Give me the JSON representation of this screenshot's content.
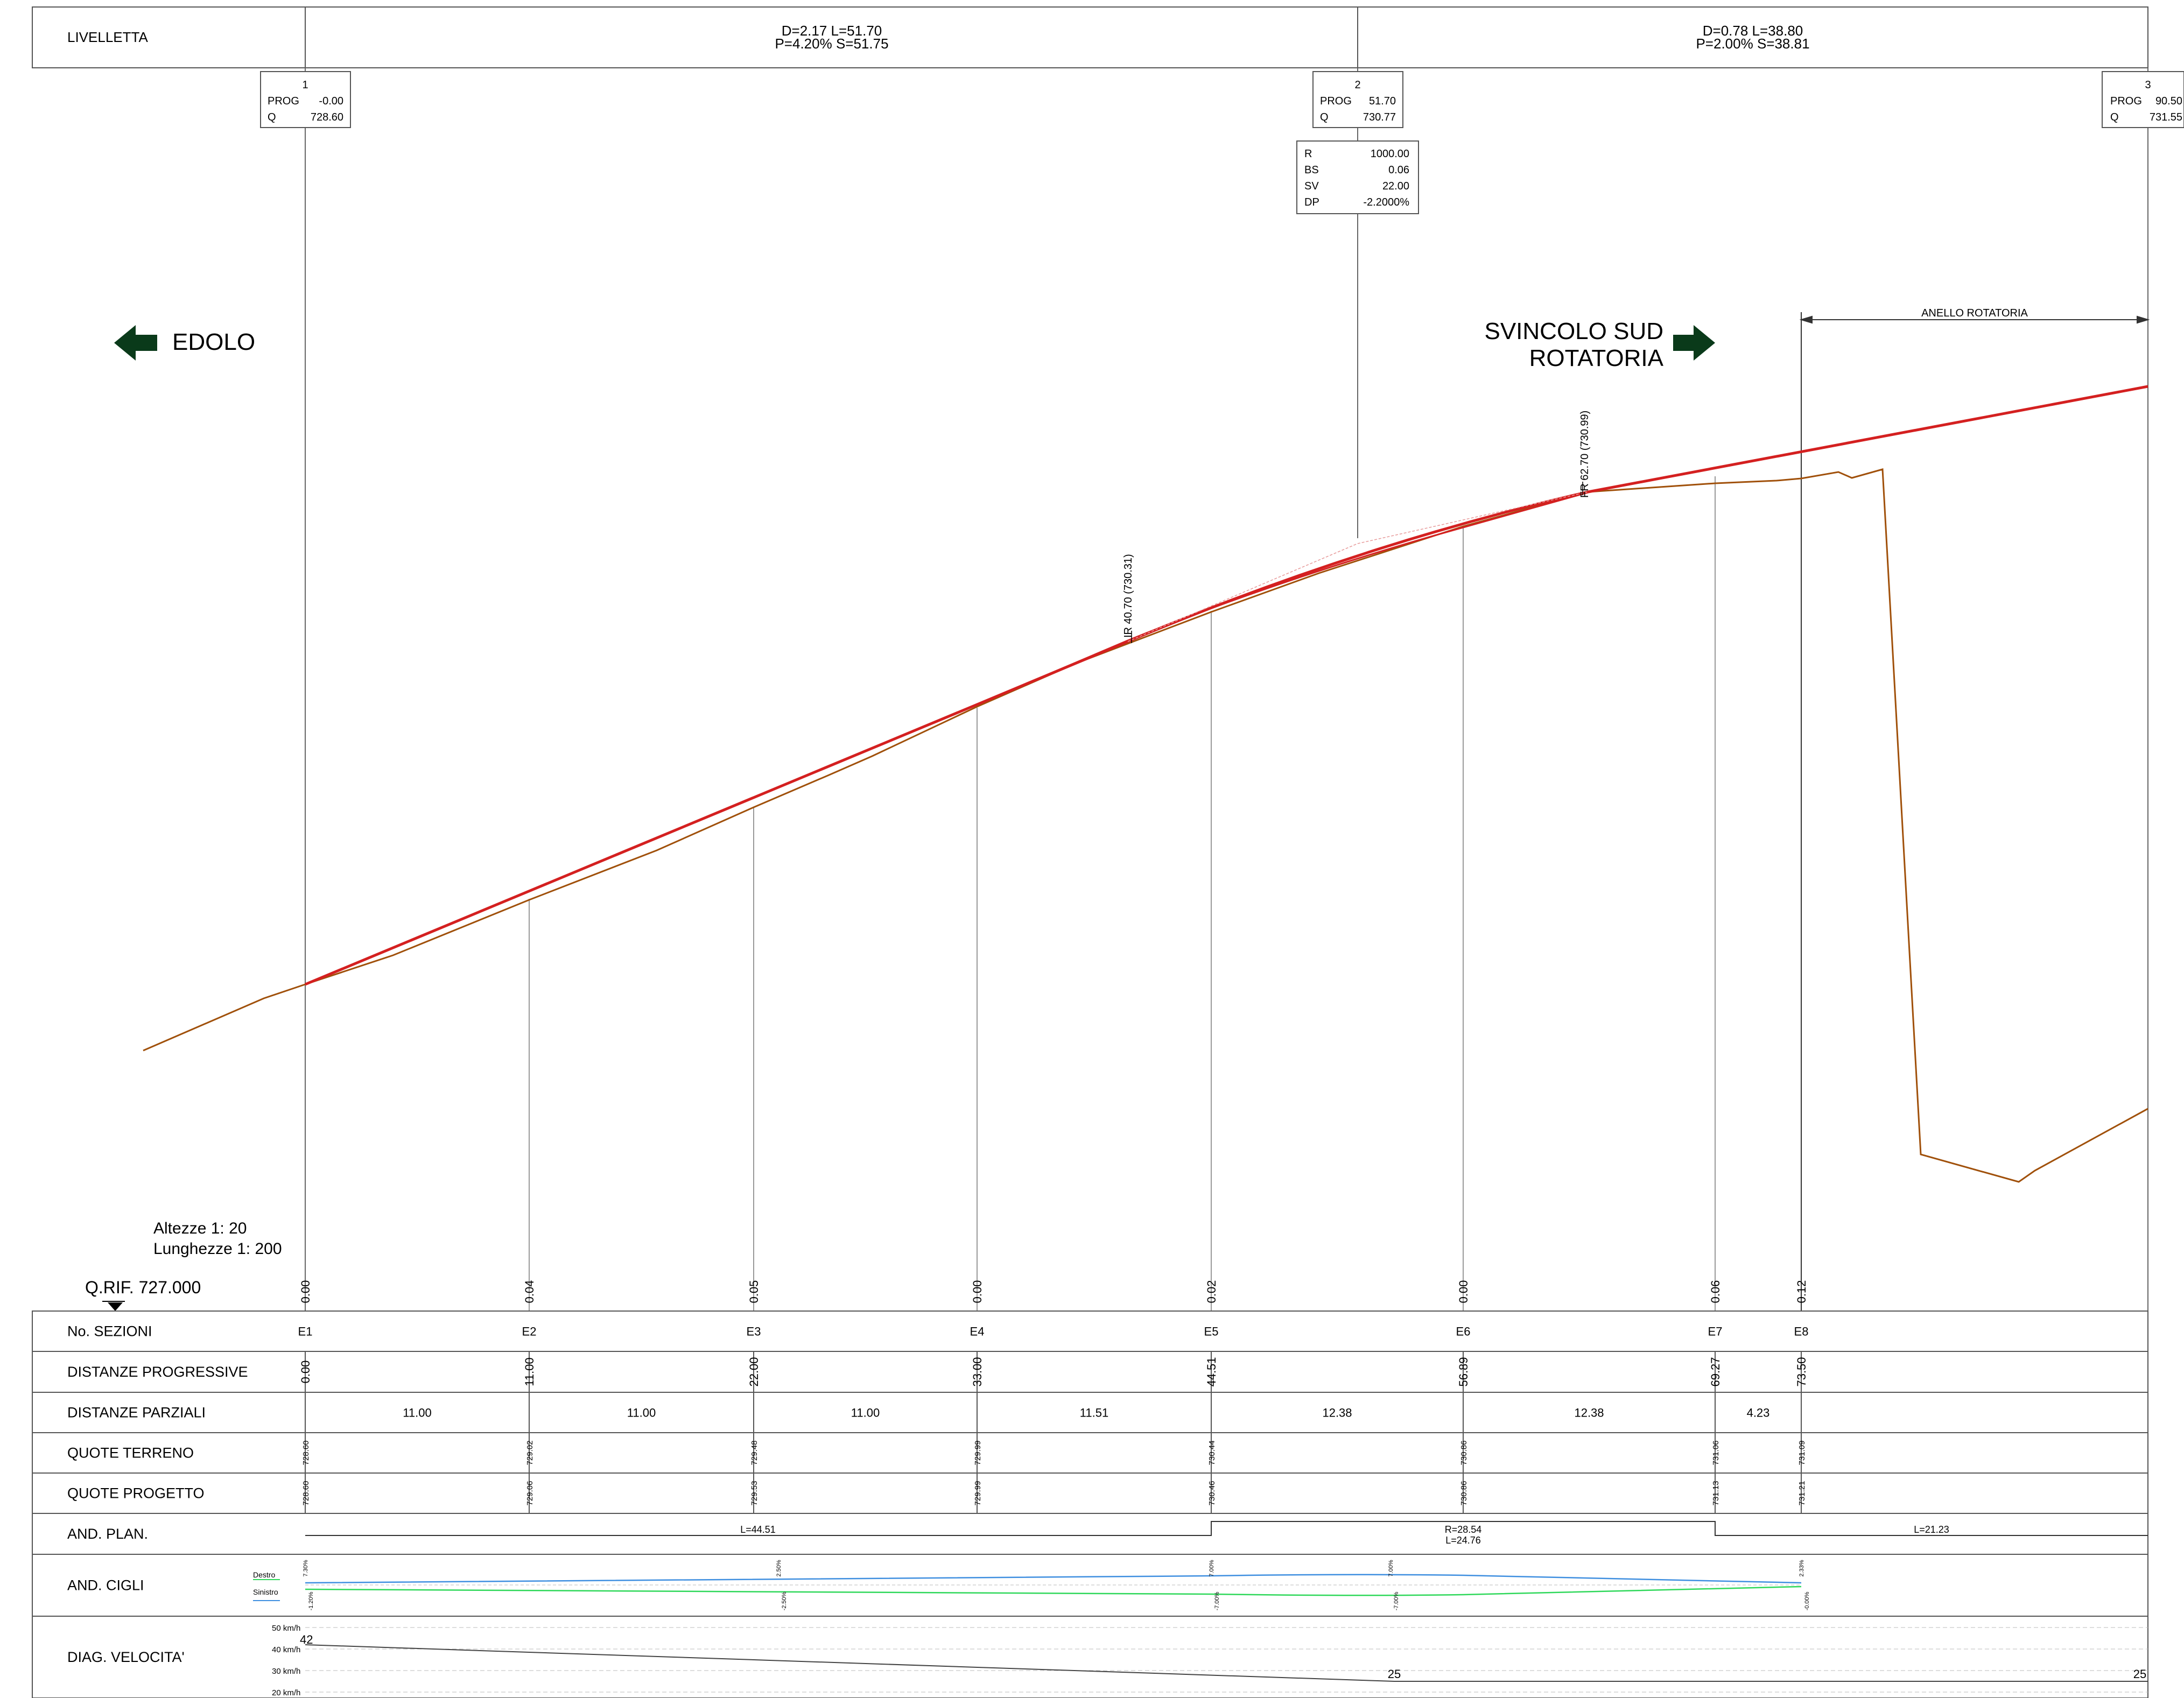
{
  "header": {
    "livelletta_label": "LIVELLETTA",
    "segment1": {
      "line1": "D=2.17 L=51.70",
      "line2": "P=4.20% S=51.75"
    },
    "segment2": {
      "line1": "D=0.78 L=38.80",
      "line2": "P=2.00% S=38.81"
    }
  },
  "vertices": [
    {
      "num": "1",
      "prog_label": "PROG",
      "prog": "-0.00",
      "q_label": "Q",
      "q": "728.60"
    },
    {
      "num": "2",
      "prog_label": "PROG",
      "prog": "51.70",
      "q_label": "Q",
      "q": "730.77"
    },
    {
      "num": "3",
      "prog_label": "PROG",
      "prog": "90.50",
      "q_label": "Q",
      "q": "731.55"
    }
  ],
  "curve_box": [
    {
      "label": "R",
      "value": "1000.00"
    },
    {
      "label": "BS",
      "value": "0.06"
    },
    {
      "label": "SV",
      "value": "22.00"
    },
    {
      "label": "DP",
      "value": "-2.2000%"
    }
  ],
  "directions": {
    "left": "EDOLO",
    "right_line1": "SVINCOLO SUD",
    "right_line2": "ROTATORIA",
    "anello": "ANELLO ROTATORIA"
  },
  "annotations": {
    "ir": "IR  40.70  (730.31)",
    "fr": "FR  62.70  (730.99)"
  },
  "scale": {
    "heights": "Altezze 1: 20",
    "lengths": "Lunghezze 1: 200",
    "qrif": "Q.RIF. 727.000"
  },
  "colors": {
    "design": "#d42020",
    "terrain": "#a0500a",
    "grid": "#555555",
    "destro": "#3f8fe0",
    "sinistro": "#2fd85a",
    "arrow": "#0a3a1a"
  },
  "table": {
    "row_labels": [
      "No. SEZIONI",
      "DISTANZE PROGRESSIVE",
      "DISTANZE PARZIALI",
      "QUOTE TERRENO",
      "QUOTE PROGETTO",
      "AND. PLAN.",
      "AND. CIGLI",
      "DIAG. VELOCITA'"
    ],
    "sections": [
      "E1",
      "E2",
      "E3",
      "E4",
      "E5",
      "E6",
      "E7",
      "E8"
    ],
    "diffs": [
      "0.00",
      "0.04",
      "0.05",
      "0.00",
      "0.02",
      "0.00",
      "0.06",
      "0.12"
    ],
    "progressive": [
      "0.00",
      "11.00",
      "22.00",
      "33.00",
      "44.51",
      "56.89",
      "69.27",
      "73.50"
    ],
    "partial": [
      "11.00",
      "11.00",
      "11.00",
      "11.51",
      "12.38",
      "12.38",
      "4.23"
    ],
    "terreno": [
      "728.60",
      "729.02",
      "729.48",
      "729.99",
      "730.44",
      "730.86",
      "731.06",
      "731.09"
    ],
    "progetto": [
      "728.60",
      "729.06",
      "729.53",
      "729.99",
      "730.46",
      "730.86",
      "731.13",
      "731.21"
    ],
    "plan": {
      "seg1": "L=44.51",
      "seg2_line1": "R=28.54",
      "seg2_line2": "L=24.76",
      "seg3": "L=21.23"
    },
    "cigli": {
      "destro_label": "Destro",
      "sinistro_label": "Sinistro",
      "top_values": [
        "7.30%",
        "2.50%",
        "7.00%",
        "7.00%",
        "2.33%"
      ],
      "bottom_values": [
        "-1.20%",
        "-2.50%",
        "-7.00%",
        "-7.00%",
        "-0.00%"
      ]
    },
    "speed": {
      "axis": [
        "50 km/h",
        "40 km/h",
        "30 km/h",
        "20 km/h"
      ],
      "start_value": "42",
      "mid_value": "25",
      "end_value": "25"
    }
  }
}
